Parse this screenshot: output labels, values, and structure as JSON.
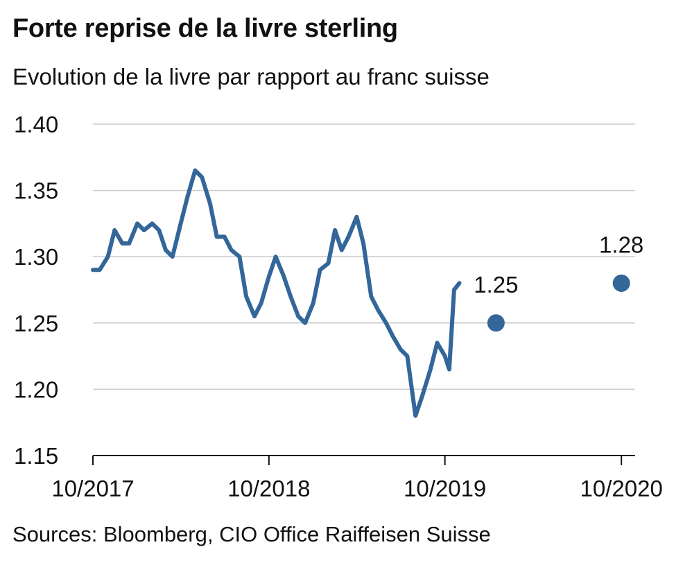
{
  "header": {
    "title": "Forte reprise de la livre sterling",
    "subtitle": "Evolution de la livre par rapport au franc suisse"
  },
  "footer": {
    "source": "Sources: Bloomberg, CIO Office Raiffeisen Suisse"
  },
  "chart_data": {
    "type": "line",
    "title": "Forte reprise de la livre sterling",
    "subtitle": "Evolution de la livre par rapport au franc suisse",
    "xlabel": "",
    "ylabel": "",
    "ylim": [
      1.15,
      1.4
    ],
    "yticks": [
      "1.40",
      "1.35",
      "1.30",
      "1.25",
      "1.20",
      "1.15"
    ],
    "xticks": [
      "10/2017",
      "10/2018",
      "10/2019",
      "10/2020"
    ],
    "grid": true,
    "legend": "none",
    "colors": {
      "line": "#336699",
      "grid": "#c8c8c8",
      "axis": "#111111"
    },
    "series": [
      {
        "values": [
          [
            "2017-10-01",
            1.29
          ],
          [
            "2017-10-15",
            1.29
          ],
          [
            "2017-11-01",
            1.3
          ],
          [
            "2017-11-15",
            1.32
          ],
          [
            "2017-12-01",
            1.31
          ],
          [
            "2017-12-15",
            1.31
          ],
          [
            "2018-01-01",
            1.325
          ],
          [
            "2018-01-15",
            1.32
          ],
          [
            "2018-02-01",
            1.325
          ],
          [
            "2018-02-15",
            1.32
          ],
          [
            "2018-03-01",
            1.305
          ],
          [
            "2018-03-15",
            1.3
          ],
          [
            "2018-04-01",
            1.325
          ],
          [
            "2018-04-15",
            1.345
          ],
          [
            "2018-05-01",
            1.365
          ],
          [
            "2018-05-15",
            1.36
          ],
          [
            "2018-06-01",
            1.34
          ],
          [
            "2018-06-15",
            1.315
          ],
          [
            "2018-07-01",
            1.315
          ],
          [
            "2018-07-15",
            1.305
          ],
          [
            "2018-08-01",
            1.3
          ],
          [
            "2018-08-15",
            1.27
          ],
          [
            "2018-09-01",
            1.255
          ],
          [
            "2018-09-15",
            1.265
          ],
          [
            "2018-10-01",
            1.285
          ],
          [
            "2018-10-15",
            1.3
          ],
          [
            "2018-11-01",
            1.285
          ],
          [
            "2018-11-15",
            1.27
          ],
          [
            "2018-12-01",
            1.255
          ],
          [
            "2018-12-15",
            1.25
          ],
          [
            "2019-01-01",
            1.265
          ],
          [
            "2019-01-15",
            1.29
          ],
          [
            "2019-02-01",
            1.295
          ],
          [
            "2019-02-15",
            1.32
          ],
          [
            "2019-03-01",
            1.305
          ],
          [
            "2019-03-15",
            1.315
          ],
          [
            "2019-04-01",
            1.33
          ],
          [
            "2019-04-15",
            1.31
          ],
          [
            "2019-05-01",
            1.27
          ],
          [
            "2019-05-15",
            1.26
          ],
          [
            "2019-06-01",
            1.25
          ],
          [
            "2019-06-15",
            1.24
          ],
          [
            "2019-07-01",
            1.23
          ],
          [
            "2019-07-15",
            1.225
          ],
          [
            "2019-08-01",
            1.18
          ],
          [
            "2019-08-15",
            1.195
          ],
          [
            "2019-09-01",
            1.215
          ],
          [
            "2019-09-15",
            1.235
          ],
          [
            "2019-10-01",
            1.225
          ],
          [
            "2019-10-10",
            1.215
          ],
          [
            "2019-10-20",
            1.275
          ],
          [
            "2019-10-31",
            1.28
          ]
        ]
      }
    ],
    "forecasts": [
      {
        "date": "2020-01-15",
        "value": 1.25,
        "label": "1.25"
      },
      {
        "date": "2020-10-01",
        "value": 1.28,
        "label": "1.28"
      }
    ]
  }
}
